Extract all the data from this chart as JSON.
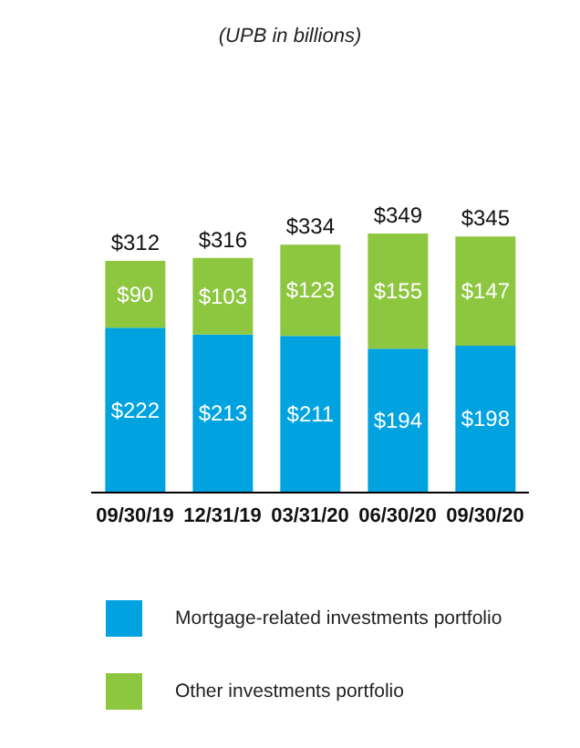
{
  "chart_data": {
    "type": "bar",
    "title": "(UPB in billions)",
    "categories": [
      "09/30/19",
      "12/31/19",
      "03/31/20",
      "06/30/20",
      "09/30/20"
    ],
    "stacked": true,
    "legend": "bottom",
    "series": [
      {
        "name": "Mortgage-related investments portfolio",
        "color": "#00a3e0",
        "values": [
          222,
          213,
          211,
          194,
          198
        ],
        "value_labels": [
          "$222",
          "$213",
          "$211",
          "$194",
          "$198"
        ]
      },
      {
        "name": "Other investments portfolio",
        "color": "#8dc63f",
        "values": [
          90,
          103,
          123,
          155,
          147
        ],
        "value_labels": [
          "$90",
          "$103",
          "$123",
          "$155",
          "$147"
        ]
      }
    ],
    "totals": [
      "$312",
      "$316",
      "$334",
      "$349",
      "$345"
    ]
  }
}
